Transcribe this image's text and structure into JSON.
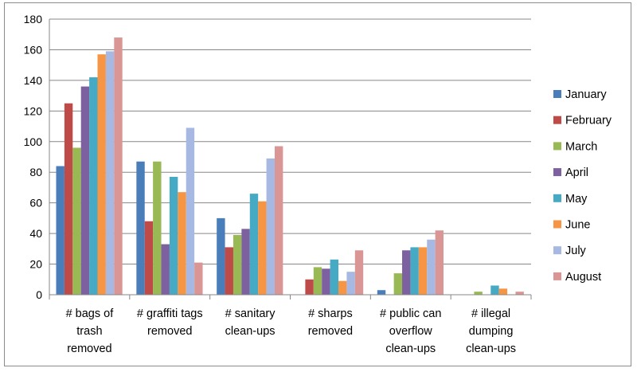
{
  "chart_data": {
    "type": "bar",
    "title": "",
    "xlabel": "",
    "ylabel": "",
    "ylim": [
      0,
      180
    ],
    "ytick_step": 20,
    "grid": true,
    "legend_position": "right",
    "categories": [
      [
        "# bags of",
        "trash",
        "removed"
      ],
      [
        "# graffiti tags",
        "removed"
      ],
      [
        "# sanitary",
        "clean-ups"
      ],
      [
        "# sharps",
        "removed"
      ],
      [
        "# public can",
        "overflow",
        "clean-ups"
      ],
      [
        "# illegal",
        "dumping",
        "clean-ups"
      ]
    ],
    "series": [
      {
        "name": "January",
        "color": "#4a7ebb",
        "values": [
          84,
          87,
          50,
          0,
          3,
          0
        ]
      },
      {
        "name": "February",
        "color": "#be4b48",
        "values": [
          125,
          48,
          31,
          10,
          0,
          0
        ]
      },
      {
        "name": "March",
        "color": "#98b954",
        "values": [
          96,
          87,
          39,
          18,
          14,
          2
        ]
      },
      {
        "name": "April",
        "color": "#7d60a0",
        "values": [
          136,
          33,
          43,
          17,
          29,
          0
        ]
      },
      {
        "name": "May",
        "color": "#46aac5",
        "values": [
          142,
          77,
          66,
          23,
          31,
          6
        ]
      },
      {
        "name": "June",
        "color": "#f69544",
        "values": [
          157,
          67,
          61,
          9,
          31,
          4
        ]
      },
      {
        "name": "July",
        "color": "#a7b9e3",
        "values": [
          159,
          109,
          89,
          15,
          36,
          0
        ]
      },
      {
        "name": "August",
        "color": "#d99694",
        "values": [
          168,
          21,
          97,
          29,
          42,
          2
        ]
      }
    ]
  }
}
